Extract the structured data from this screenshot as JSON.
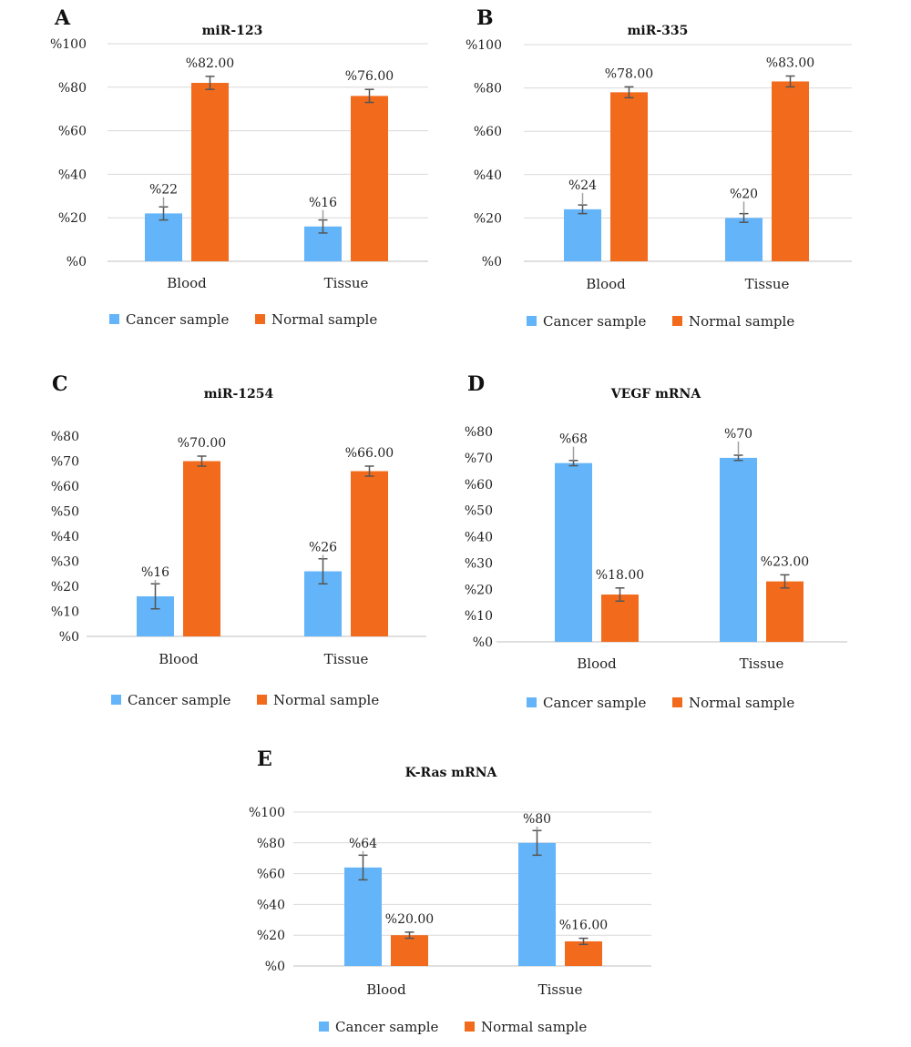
{
  "colors": {
    "cancer": "#63b4f8",
    "normal": "#f26b1d",
    "error_dark": "#555555",
    "error_light": "#a0a0a0"
  },
  "legend": {
    "cancer": "Cancer sample",
    "normal": "Normal sample"
  },
  "chart_data": [
    {
      "panel": "A",
      "type": "bar",
      "title": "miR-123",
      "categories": [
        "Blood",
        "Tissue"
      ],
      "ylim": [
        0,
        100
      ],
      "yticks": [
        "%0",
        "%20",
        "%40",
        "%60",
        "%80",
        "%100"
      ],
      "yticks_values": [
        0,
        20,
        40,
        60,
        80,
        100
      ],
      "grid": true,
      "legend_position": "bottom",
      "series": [
        {
          "name": "Cancer sample",
          "values": [
            22,
            16
          ],
          "labels": [
            "%22",
            "%16"
          ],
          "errors": [
            3,
            3
          ]
        },
        {
          "name": "Normal sample",
          "values": [
            82,
            76
          ],
          "labels": [
            "%82.00",
            "%76.00"
          ],
          "errors": [
            3,
            3
          ]
        }
      ]
    },
    {
      "panel": "B",
      "type": "bar",
      "title": "miR-335",
      "categories": [
        "Blood",
        "Tissue"
      ],
      "ylim": [
        0,
        100
      ],
      "yticks": [
        "%0",
        "%20",
        "%40",
        "%60",
        "%80",
        "%100"
      ],
      "yticks_values": [
        0,
        20,
        40,
        60,
        80,
        100
      ],
      "grid": true,
      "legend_position": "bottom",
      "series": [
        {
          "name": "Cancer sample",
          "values": [
            24,
            20
          ],
          "labels": [
            "%24",
            "%20"
          ],
          "errors": [
            2,
            2
          ]
        },
        {
          "name": "Normal sample",
          "values": [
            78,
            83
          ],
          "labels": [
            "%78.00",
            "%83.00"
          ],
          "errors": [
            2.5,
            2.5
          ]
        }
      ]
    },
    {
      "panel": "C",
      "type": "bar",
      "title": "miR-1254",
      "categories": [
        "Blood",
        "Tissue"
      ],
      "ylim": [
        0,
        80
      ],
      "yticks": [
        "%0",
        "%10",
        "%20",
        "%30",
        "%40",
        "%50",
        "%60",
        "%70",
        "%80"
      ],
      "yticks_values": [
        0,
        10,
        20,
        30,
        40,
        50,
        60,
        70,
        80
      ],
      "grid": false,
      "legend_position": "bottom",
      "series": [
        {
          "name": "Cancer sample",
          "values": [
            16,
            26
          ],
          "labels": [
            "%16",
            "%26"
          ],
          "errors": [
            5,
            5
          ]
        },
        {
          "name": "Normal sample",
          "values": [
            70,
            66
          ],
          "labels": [
            "%70.00",
            "%66.00"
          ],
          "errors": [
            2,
            2
          ]
        }
      ]
    },
    {
      "panel": "D",
      "type": "bar",
      "title": "VEGF mRNA",
      "categories": [
        "Blood",
        "Tissue"
      ],
      "ylim": [
        0,
        80
      ],
      "yticks": [
        "%0",
        "%10",
        "%20",
        "%30",
        "%40",
        "%50",
        "%60",
        "%70",
        "%80"
      ],
      "yticks_values": [
        0,
        10,
        20,
        30,
        40,
        50,
        60,
        70,
        80
      ],
      "grid": false,
      "legend_position": "bottom",
      "series": [
        {
          "name": "Cancer sample",
          "values": [
            68,
            70
          ],
          "labels": [
            "%68",
            "%70"
          ],
          "errors": [
            1,
            1
          ]
        },
        {
          "name": "Normal sample",
          "values": [
            18,
            23
          ],
          "labels": [
            "%18.00",
            "%23.00"
          ],
          "errors": [
            2.5,
            2.5
          ]
        }
      ]
    },
    {
      "panel": "E",
      "type": "bar",
      "title": "K-Ras mRNA",
      "categories": [
        "Blood",
        "Tissue"
      ],
      "ylim": [
        0,
        100
      ],
      "yticks": [
        "%0",
        "%20",
        "%40",
        "%60",
        "%80",
        "%100"
      ],
      "yticks_values": [
        0,
        20,
        40,
        60,
        80,
        100
      ],
      "grid": true,
      "legend_position": "bottom",
      "series": [
        {
          "name": "Cancer sample",
          "values": [
            64,
            80
          ],
          "labels": [
            "%64",
            "%80"
          ],
          "errors": [
            8,
            8
          ]
        },
        {
          "name": "Normal sample",
          "values": [
            20,
            16
          ],
          "labels": [
            "%20.00",
            "%16.00"
          ],
          "errors": [
            2,
            2
          ]
        }
      ]
    }
  ]
}
